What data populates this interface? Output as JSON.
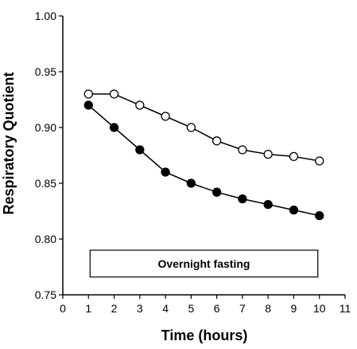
{
  "chart_data": {
    "type": "scatter",
    "xlabel": "Time (hours)",
    "ylabel": "Respiratory Quotient",
    "xlim": [
      0,
      11
    ],
    "ylim": [
      0.75,
      1.0
    ],
    "x_ticks": [
      "0",
      "1",
      "2",
      "3",
      "4",
      "5",
      "6",
      "7",
      "8",
      "9",
      "10",
      "11"
    ],
    "y_ticks": [
      "0.75",
      "0.80",
      "0.85",
      "0.90",
      "0.95",
      "1.00"
    ],
    "grid": false,
    "legend": "none",
    "annotation": {
      "text": "Overnight fasting",
      "x_start": 1,
      "x_end": 10,
      "y_start": 0.766,
      "y_end": 0.79
    },
    "series": [
      {
        "marker": "open-circle",
        "color": "#000000",
        "x": [
          1,
          2,
          3,
          4,
          5,
          6,
          7,
          8,
          9,
          10
        ],
        "y": [
          0.93,
          0.93,
          0.92,
          0.91,
          0.9,
          0.888,
          0.88,
          0.876,
          0.874,
          0.87
        ]
      },
      {
        "marker": "filled-circle",
        "color": "#000000",
        "x": [
          1,
          2,
          3,
          4,
          5,
          6,
          7,
          8,
          9,
          10
        ],
        "y": [
          0.92,
          0.9,
          0.88,
          0.86,
          0.85,
          0.842,
          0.836,
          0.831,
          0.826,
          0.821
        ]
      }
    ]
  }
}
